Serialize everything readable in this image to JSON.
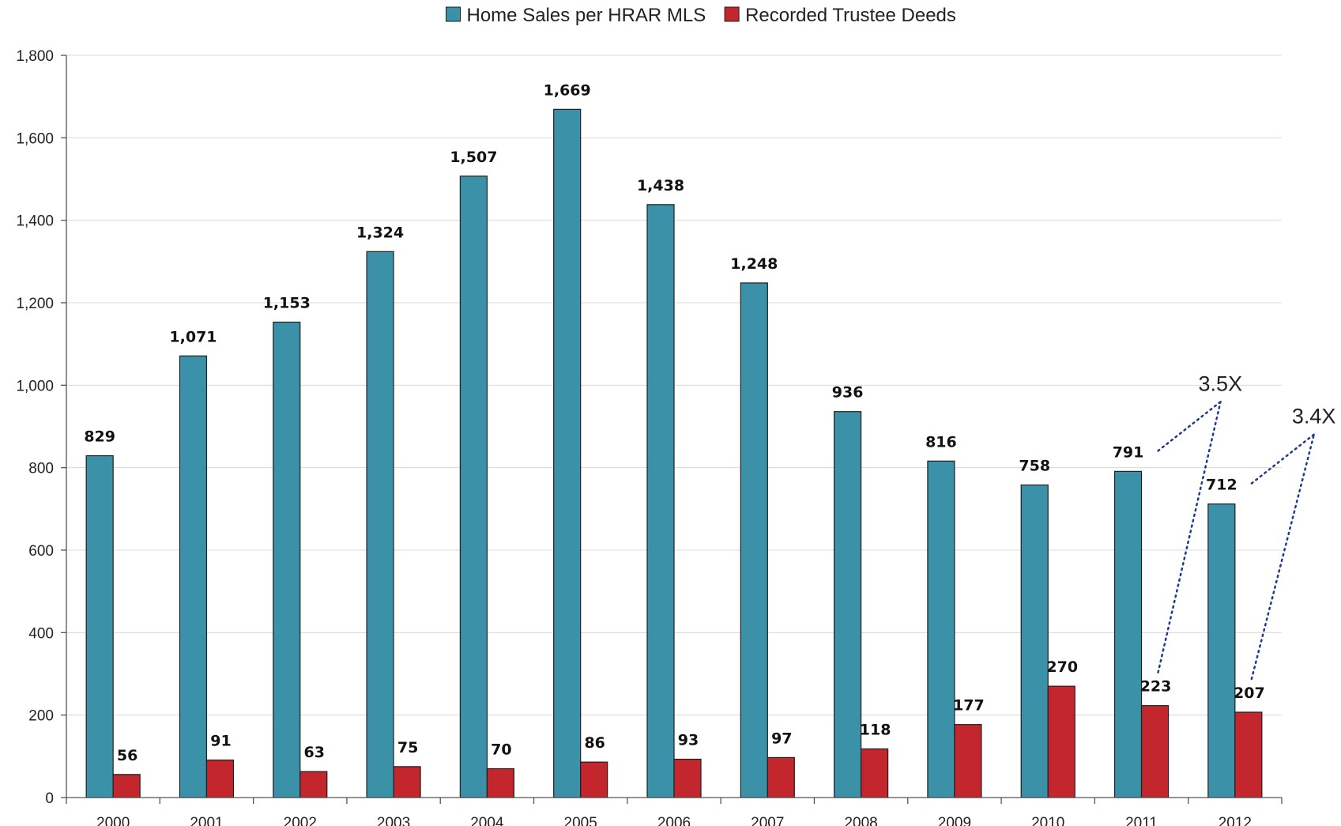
{
  "chart_data": {
    "type": "bar",
    "categories": [
      "2000",
      "2001",
      "2002",
      "2003",
      "2004",
      "2005",
      "2006",
      "2007",
      "2008",
      "2009",
      "2010",
      "2011",
      "2012"
    ],
    "series": [
      {
        "name": "Home Sales per HRAR MLS",
        "color": "#3a91a8",
        "values": [
          829,
          1071,
          1153,
          1324,
          1507,
          1669,
          1438,
          1248,
          936,
          816,
          758,
          791,
          712
        ],
        "labels": [
          "829",
          "1,071",
          "1,153",
          "1,324",
          "1,507",
          "1,669",
          "1,438",
          "1,248",
          "936",
          "816",
          "758",
          "791",
          "712"
        ]
      },
      {
        "name": "Recorded Trustee Deeds",
        "color": "#c3272d",
        "values": [
          56,
          91,
          63,
          75,
          70,
          86,
          93,
          97,
          118,
          177,
          270,
          223,
          207
        ],
        "labels": [
          "56",
          "91",
          "63",
          "75",
          "70",
          "86",
          "93",
          "97",
          "118",
          "177",
          "270",
          "223",
          "207"
        ]
      }
    ],
    "ylim": [
      0,
      1800
    ],
    "yticks": [
      0,
      200,
      400,
      600,
      800,
      1000,
      1200,
      1400,
      1600,
      1800
    ],
    "ytick_labels": [
      "0",
      "200",
      "400",
      "600",
      "800",
      "1,000",
      "1,200",
      "1,400",
      "1,600",
      "1,800"
    ],
    "grid": true,
    "legend_position": "top-center",
    "annotations": [
      {
        "text": "3.5X",
        "category": "2011"
      },
      {
        "text": "3.4X",
        "category": "2012"
      }
    ]
  }
}
